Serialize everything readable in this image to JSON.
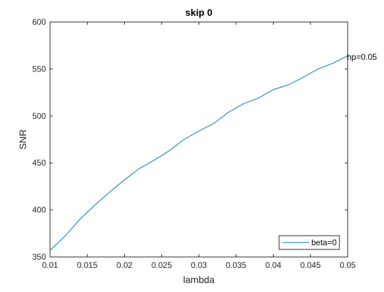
{
  "chart_data": {
    "type": "line",
    "title": "skip 0",
    "xlabel": "lambda",
    "ylabel": "SNR",
    "xlim": [
      0.01,
      0.05
    ],
    "ylim": [
      350,
      600
    ],
    "xticks": [
      0.01,
      0.015,
      0.02,
      0.025,
      0.03,
      0.035,
      0.04,
      0.045,
      0.05
    ],
    "xtick_labels": [
      "0.01",
      "0.015",
      "0.02",
      "0.025",
      "0.03",
      "0.035",
      "0.04",
      "0.045",
      "0.05"
    ],
    "yticks": [
      350,
      400,
      450,
      500,
      550,
      600
    ],
    "ytick_labels": [
      "350",
      "400",
      "450",
      "500",
      "550",
      "600"
    ],
    "grid": false,
    "legend_position": "bottom-right",
    "series": [
      {
        "name": "beta=0",
        "color": "#0072bd",
        "x": [
          0.01,
          0.012,
          0.014,
          0.016,
          0.018,
          0.02,
          0.022,
          0.024,
          0.026,
          0.028,
          0.03,
          0.032,
          0.034,
          0.036,
          0.038,
          0.04,
          0.042,
          0.044,
          0.046,
          0.048,
          0.05
        ],
        "y": [
          357,
          372,
          390,
          405,
          419,
          432,
          444,
          453,
          463,
          475,
          484,
          492,
          504,
          513,
          519,
          528,
          533,
          541,
          550,
          556,
          564
        ]
      }
    ],
    "annotations": [
      {
        "text": "hp=0.05",
        "x": 0.05,
        "y": 564
      }
    ]
  }
}
